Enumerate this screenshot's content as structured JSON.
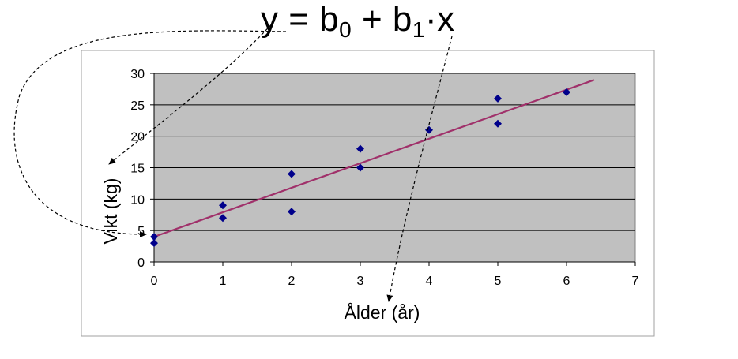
{
  "equation": {
    "y": "y",
    "eq": "=",
    "b": "b",
    "sub0": "0",
    "plus": "+",
    "sub1": "1",
    "dot": "·",
    "x": "x"
  },
  "chart_data": {
    "type": "scatter",
    "title": "",
    "xlabel": "Ålder (år)",
    "ylabel": "Vikt (kg)",
    "xlim": [
      0,
      7
    ],
    "ylim": [
      0,
      30
    ],
    "x_ticks": [
      0,
      1,
      2,
      3,
      4,
      5,
      6,
      7
    ],
    "y_ticks": [
      0,
      5,
      10,
      15,
      20,
      25,
      30
    ],
    "grid": "horizontal",
    "plot_background": "#c0c0c0",
    "series": [
      {
        "kind": "points",
        "color": "#00008b",
        "marker": "diamond",
        "points": [
          [
            0,
            3
          ],
          [
            0,
            4
          ],
          [
            1,
            7
          ],
          [
            1,
            9
          ],
          [
            2,
            8
          ],
          [
            2,
            14
          ],
          [
            3,
            15
          ],
          [
            3,
            18
          ],
          [
            4,
            21
          ],
          [
            5,
            22
          ],
          [
            5,
            26
          ],
          [
            6,
            27
          ]
        ]
      },
      {
        "kind": "fit-line",
        "color": "#a0306a",
        "intercept": 4,
        "slope": 3.9,
        "x_range": [
          0,
          6.4
        ]
      }
    ]
  }
}
